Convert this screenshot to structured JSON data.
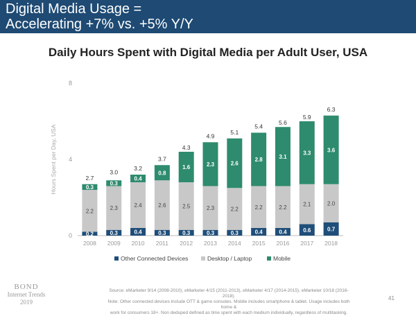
{
  "header": {
    "line1": "Digital Media Usage =",
    "line2": "Accelerating +7% vs. +5% Y/Y",
    "band_color": "#1e4a73"
  },
  "chart_data": {
    "type": "bar",
    "stacked": true,
    "title": "Daily Hours Spent with Digital Media per Adult User, USA",
    "xlabel": "",
    "ylabel": "Hours Spent per Day, USA",
    "ylim": [
      0,
      8
    ],
    "yticks": [
      0,
      4,
      8
    ],
    "grid": false,
    "legend_position": "bottom",
    "categories": [
      "2008",
      "2009",
      "2010",
      "2011",
      "2012",
      "2013",
      "2014",
      "2015",
      "2016",
      "2017",
      "2018"
    ],
    "series": [
      {
        "name": "Other Connected Devices",
        "color": "#1f4e79",
        "values": [
          0.2,
          0.3,
          0.4,
          0.3,
          0.3,
          0.3,
          0.3,
          0.4,
          0.4,
          0.6,
          0.7
        ],
        "labels": [
          "0.2",
          "0.3",
          "0.4",
          "0.3",
          "0.3",
          "0.3",
          "0.3",
          "0.4",
          "0.4",
          "0.6",
          "0.7"
        ]
      },
      {
        "name": "Desktop / Laptop",
        "color": "#c8c8c8",
        "values": [
          2.2,
          2.3,
          2.4,
          2.6,
          2.5,
          2.3,
          2.2,
          2.2,
          2.2,
          2.1,
          2.0
        ],
        "labels": [
          "2.2",
          "2.3",
          "2.4",
          "2.6",
          "2.5",
          "2.3",
          "2.2",
          "2.2",
          "2.2",
          "2.1",
          "2.0"
        ]
      },
      {
        "name": "Mobile",
        "color": "#2e8b6e",
        "values": [
          0.3,
          0.3,
          0.4,
          0.8,
          1.6,
          2.3,
          2.6,
          2.8,
          3.1,
          3.3,
          3.6
        ],
        "labels": [
          "0.3",
          "0.3",
          "0.4",
          "0.8",
          "1.6",
          "2.3",
          "2.6",
          "2.8",
          "3.1",
          "3.3",
          "3.6"
        ]
      }
    ],
    "totals": [
      2.7,
      3.0,
      3.2,
      3.7,
      4.3,
      4.9,
      5.1,
      5.4,
      5.6,
      5.9,
      6.3
    ],
    "total_labels": [
      "2.7",
      "3.0",
      "3.2",
      "3.7",
      "4.3",
      "4.9",
      "5.1",
      "5.4",
      "5.6",
      "5.9",
      "6.3"
    ]
  },
  "footer": {
    "logo_line1": "BOND",
    "logo_line2": "Internet Trends",
    "logo_line3": "2019",
    "source_line1": "Source: eMarketer 9/14 (2008-2010), eMarketer 4/15 (2011-2013), eMarketer 4/17 (2014-2015), eMarketer 10/18 (2016-2018).",
    "source_line2": "Note: Other connected devices include OTT & game consoles. Mobile includes smartphone & tablet. Usage includes both home &",
    "source_line3": "work for consumers 18+. Non deduped defined as time spent with each medium individually, regardless of multitasking.",
    "page_number": "41"
  }
}
